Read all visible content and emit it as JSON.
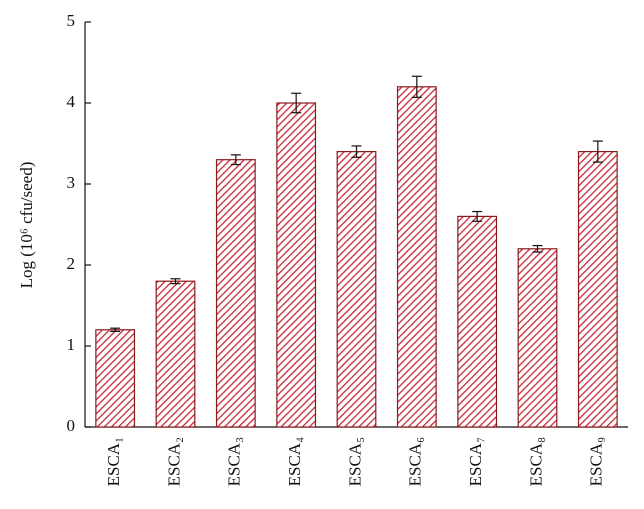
{
  "chart_data": {
    "type": "bar",
    "categories": [
      "ESCA₁",
      "ESCA₂",
      "ESCA₃",
      "ESCA₄",
      "ESCA₅",
      "ESCA₆",
      "ESCA₇",
      "ESCA₈",
      "ESCA₉"
    ],
    "values": [
      1.2,
      1.8,
      3.3,
      4.0,
      3.4,
      4.2,
      2.6,
      2.2,
      3.4
    ],
    "errors": [
      0.02,
      0.03,
      0.06,
      0.12,
      0.07,
      0.13,
      0.06,
      0.04,
      0.13
    ],
    "color": "#c8283c",
    "y_label": "Log (10⁶ cfu/seed)",
    "ylim": [
      0,
      5
    ],
    "yticks": [
      0,
      1,
      2,
      3,
      4,
      5
    ],
    "grid": false
  }
}
